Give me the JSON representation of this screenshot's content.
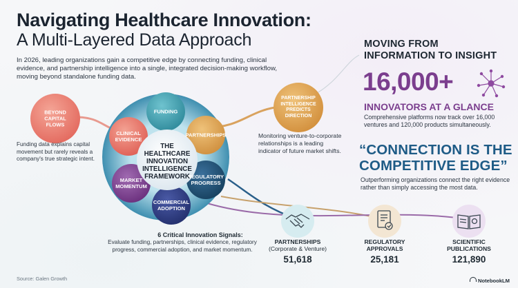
{
  "title_line1": "Navigating Healthcare Innovation:",
  "title_line2": "A Multi-Layered Data Approach",
  "intro": "In 2026, leading organizations gain a competitive edge by connecting funding, clinical evidence, and partnership intelligence into a single, integrated decision-making workflow, moving beyond standalone funding data.",
  "framework": {
    "center": [
      "THE",
      "HEALTHCARE",
      "INNOVATION",
      "INTELLIGENCE",
      "FRAMEWORK"
    ],
    "segments": {
      "funding": [
        "FUNDING"
      ],
      "partnerships": [
        "PARTNERSHIPS"
      ],
      "regulatory": [
        "REGULATORY",
        "PROGRESS"
      ],
      "commercial": [
        "COMMERCIAL",
        "ADOPTION"
      ],
      "market": [
        "MARKET",
        "MOMENTUM"
      ],
      "clinical": [
        "CLINICAL",
        "EVIDENCE"
      ]
    },
    "signals_title": "6 Critical Innovation Signals:",
    "signals_text": "Evaluate funding, partnerships, clinical evidence, regulatory progress, commercial adoption, and market momentum."
  },
  "left_callout": {
    "bubble": [
      "BEYOND",
      "CAPITAL",
      "FLOWS"
    ],
    "text": "Funding data explains capital movement but rarely reveals a company's true strategic intent."
  },
  "middle_callout": {
    "bubble": [
      "PARTNERSHIP",
      "INTELLIGENCE",
      "PREDICTS",
      "DIRECTION"
    ],
    "text": "Monitoring venture-to-corporate relationships is a leading indicator of future market shifts."
  },
  "right_panel": {
    "heading": [
      "MOVING FROM",
      "INFORMATION TO INSIGHT"
    ],
    "big_number": "16,000+",
    "subheading": "INNOVATORS AT A GLANCE",
    "body1": "Comprehensive platforms now track over 16,000 ventures and 120,000 products simultaneously.",
    "quote": [
      "“CONNECTION IS THE",
      "COMPETITIVE EDGE”"
    ],
    "body2": "Outperforming organizations connect the right evidence rather than simply accessing the most data."
  },
  "stats": [
    {
      "label": "PARTNERSHIPS",
      "sub": "(Corporate & Venture)",
      "value": "51,618",
      "icon": "handshake-icon"
    },
    {
      "label": "REGULATORY",
      "sub": "APPROVALS",
      "value": "25,181",
      "icon": "document-icon"
    },
    {
      "label": "SCIENTIFIC",
      "sub": "PUBLICATIONS",
      "value": "121,890",
      "icon": "book-icon"
    }
  ],
  "source": "Source: Galen Growth",
  "logo": "NotebookLM",
  "colors": {
    "coral": "#ea7a6e",
    "teal": "#3f9aa9",
    "gold": "#dba25a",
    "navy": "#1f4f7a",
    "purple": "#7b3e8e",
    "indigo": "#2e3f86",
    "blue": "#1e5b86"
  }
}
